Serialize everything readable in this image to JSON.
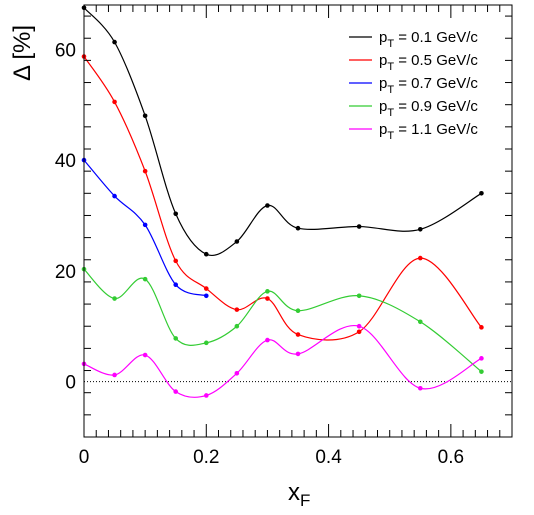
{
  "chart_data": {
    "type": "line",
    "xlabel_main": "x",
    "xlabel_sub": "F",
    "ylabel": "Δ [%]",
    "xlim": [
      0,
      0.7
    ],
    "ylim": [
      -10,
      68
    ],
    "x_ticks": [
      0,
      0.2,
      0.4,
      0.6
    ],
    "x_tick_labels": [
      "0",
      "0.2",
      "0.4",
      "0.6"
    ],
    "y_ticks": [
      0,
      20,
      40,
      60
    ],
    "y_tick_labels": [
      "0",
      "20",
      "40",
      "60"
    ],
    "grid": false,
    "legend_position": "top-right",
    "reference_line": {
      "y": 0,
      "style": "dotted"
    },
    "series": [
      {
        "legend_main": "p",
        "legend_sub": "T",
        "legend_rest": " = 0.1 GeV/c",
        "color": "#000000",
        "x": [
          0,
          0.05,
          0.1,
          0.15,
          0.2,
          0.25,
          0.3,
          0.35,
          0.45,
          0.55,
          0.65
        ],
        "y": [
          67.5,
          61.3,
          48.0,
          30.3,
          23.0,
          25.3,
          31.8,
          27.7,
          28.0,
          27.5,
          34.0
        ]
      },
      {
        "legend_main": "p",
        "legend_sub": "T",
        "legend_rest": " = 0.5 GeV/c",
        "color": "#ff0000",
        "x": [
          0,
          0.05,
          0.1,
          0.15,
          0.2,
          0.25,
          0.3,
          0.35,
          0.45,
          0.55,
          0.65
        ],
        "y": [
          58.7,
          50.5,
          38.0,
          21.8,
          16.8,
          13.0,
          15.0,
          8.5,
          9.0,
          22.3,
          9.8
        ]
      },
      {
        "legend_main": "p",
        "legend_sub": "T",
        "legend_rest": " = 0.7 GeV/c",
        "color": "#0000ff",
        "x": [
          0,
          0.05,
          0.1,
          0.15,
          0.2
        ],
        "y": [
          40.0,
          33.5,
          28.3,
          17.5,
          15.5
        ]
      },
      {
        "legend_main": "p",
        "legend_sub": "T",
        "legend_rest": " = 0.9 GeV/c",
        "color": "#33cc33",
        "x": [
          0,
          0.05,
          0.1,
          0.15,
          0.2,
          0.25,
          0.3,
          0.35,
          0.45,
          0.55,
          0.65
        ],
        "y": [
          20.3,
          15.0,
          18.5,
          7.8,
          7.0,
          10.0,
          16.3,
          12.8,
          15.5,
          10.8,
          1.8
        ]
      },
      {
        "legend_main": "p",
        "legend_sub": "T",
        "legend_rest": " = 1.1 GeV/c",
        "color": "#ff00ff",
        "x": [
          0,
          0.05,
          0.1,
          0.15,
          0.2,
          0.25,
          0.3,
          0.35,
          0.45,
          0.55,
          0.65
        ],
        "y": [
          3.2,
          1.2,
          4.8,
          -1.8,
          -2.5,
          1.5,
          7.5,
          5.0,
          10.0,
          -1.2,
          4.2
        ]
      }
    ]
  }
}
